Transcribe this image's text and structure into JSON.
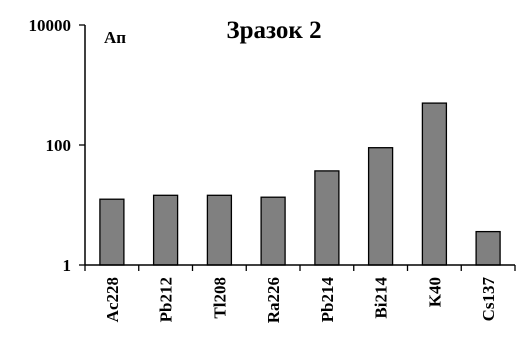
{
  "chart_data": {
    "type": "bar",
    "title": "Зразок 2",
    "ylabel": "Ап",
    "xlabel": "",
    "yscale": "log",
    "ylim": [
      1,
      10000
    ],
    "yticks": [
      1,
      100,
      10000
    ],
    "yticklabels": [
      "1",
      "100",
      "10000"
    ],
    "grid": false,
    "categories": [
      "Ac228",
      "Pb212",
      "Tl208",
      "Ra226",
      "Pb214",
      "Bi214",
      "K40",
      "Cs137"
    ],
    "values": [
      12.5,
      14.5,
      14.5,
      13.5,
      37,
      90,
      500,
      3.6
    ],
    "bar_color": "#808080",
    "bar_edge_color": "#000000"
  }
}
